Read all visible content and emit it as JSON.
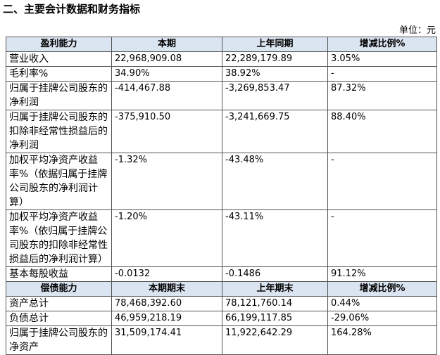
{
  "title": "二、主要会计数据和财务指标",
  "unit": "单位：元",
  "sections": [
    {
      "header": [
        "盈利能力",
        "本期",
        "上年同期",
        "增减比例%"
      ],
      "rows": [
        [
          "营业收入",
          "22,968,909.08",
          "22,289,179.89",
          "3.05%"
        ],
        [
          "毛利率%",
          "34.90%",
          "38.92%",
          "-"
        ],
        [
          "归属于挂牌公司股东的净利润",
          "-414,467.88",
          "-3,269,853.47",
          "87.32%"
        ],
        [
          "归属于挂牌公司股东的扣除非经常性损益后的净利润",
          "-375,910.50",
          "-3,241,669.75",
          "88.40%"
        ],
        [
          "加权平均净资产收益率%（依据归属于挂牌公司股东的净利润计算）",
          "-1.32%",
          "-43.48%",
          "-"
        ],
        [
          "加权平均净资产收益率%（依归属于挂牌公司股东的扣除非经常性损益后的净利润计算）",
          "-1.20%",
          "-43.11%",
          "-"
        ],
        [
          "基本每股收益",
          "-0.0132",
          "-0.1486",
          "91.12%"
        ]
      ]
    },
    {
      "header": [
        "偿债能力",
        "本期期末",
        "上年期末",
        "增减比例%"
      ],
      "rows": [
        [
          "资产总计",
          "78,468,392.60",
          "78,121,760.14",
          "0.44%"
        ],
        [
          "负债总计",
          "46,959,218.19",
          "66,199,117.85",
          "-29.06%"
        ],
        [
          "归属于挂牌公司股东的净资产",
          "31,509,174.41",
          "11,922,642.29",
          "164.28%"
        ]
      ]
    }
  ]
}
